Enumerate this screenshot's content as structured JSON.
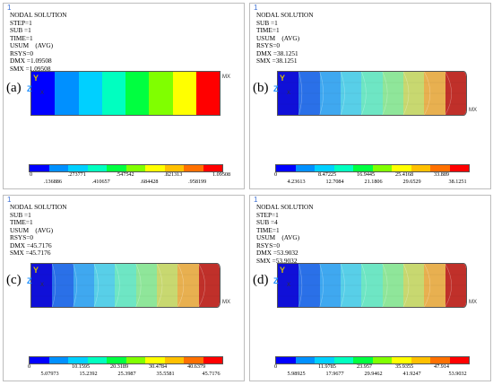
{
  "legend_colors": [
    "#0000ff",
    "#0090ff",
    "#00d0ff",
    "#00ffc0",
    "#00ff40",
    "#80ff00",
    "#ffff00",
    "#ffc000",
    "#ff7000",
    "#ff0000"
  ],
  "panels": [
    {
      "id": "a",
      "label": "(a)",
      "number": "1",
      "title": "NODAL SOLUTION",
      "lines": [
        "STEP=1",
        "SUB =1",
        "TIME=1",
        "USUM    (AVG)",
        "RSYS=0",
        "DMX =1.09508",
        "SMX =1.09508"
      ],
      "axis_y": "Y",
      "axis_z": "Z",
      "axis_x": "X",
      "mn_label": "MX",
      "model_colors": [
        "#0000ff",
        "#0090ff",
        "#00d0ff",
        "#00ffc0",
        "#00ff40",
        "#80ff00",
        "#ffff00",
        "#ff0000"
      ],
      "deformed": false,
      "ticks_top": [
        "0",
        ".273771",
        ".547542",
        ".821313",
        "1.09508"
      ],
      "ticks_bottom": [
        ".136886",
        ".410657",
        ".684428",
        ".958199"
      ]
    },
    {
      "id": "b",
      "label": "(b)",
      "number": "1",
      "title": "NODAL SOLUTION",
      "lines": [
        "SUB =1",
        "TIME=1",
        "USUM    (AVG)",
        "RSYS=0",
        "DMX =38.1251",
        "SMX =38.1251"
      ],
      "axis_y": "Y",
      "axis_z": "Z",
      "axis_x": "X",
      "mn_label": "MX",
      "model_colors": [
        "#1010d8",
        "#2a70e8",
        "#3fa8f0",
        "#58cfe8",
        "#6ee6c4",
        "#8fe69a",
        "#c8d870",
        "#e8b050",
        "#c0302a"
      ],
      "deformed": true,
      "ticks_top": [
        "0",
        "8.47225",
        "16.9445",
        "25.4168",
        "33.889"
      ],
      "ticks_bottom": [
        "4.23613",
        "12.7084",
        "21.1806",
        "29.6529",
        "38.1251"
      ]
    },
    {
      "id": "c",
      "label": "(c)",
      "number": "1",
      "title": "NODAL SOLUTION",
      "lines": [
        "SUB =1",
        "TIME=1",
        "USUM    (AVG)",
        "RSYS=0",
        "DMX =45.7176",
        "SMX =45.7176"
      ],
      "axis_y": "Y",
      "axis_z": "Z",
      "axis_x": "X",
      "mn_label": "MX",
      "model_colors": [
        "#1010d8",
        "#2a70e8",
        "#3fa8f0",
        "#58cfe8",
        "#6ee6c4",
        "#8fe69a",
        "#c8d870",
        "#e8b050",
        "#c0302a"
      ],
      "deformed": true,
      "ticks_top": [
        "0",
        "10.1595",
        "20.3189",
        "30.4784",
        "40.6379"
      ],
      "ticks_bottom": [
        "5.07973",
        "15.2392",
        "25.3987",
        "35.5581",
        "45.7176"
      ]
    },
    {
      "id": "d",
      "label": "(d)",
      "number": "1",
      "title": "NODAL SOLUTION",
      "lines": [
        "STEP=1",
        "SUB =4",
        "TIME=1",
        "USUM    (AVG)",
        "RSYS=0",
        "DMX =53.9032",
        "SMX =53.9032"
      ],
      "axis_y": "Y",
      "axis_z": "Z",
      "axis_x": "X",
      "mn_label": "MX",
      "model_colors": [
        "#1010d8",
        "#2a70e8",
        "#3fa8f0",
        "#58cfe8",
        "#6ee6c4",
        "#8fe69a",
        "#c8d870",
        "#e8b050",
        "#c0302a"
      ],
      "deformed": true,
      "ticks_top": [
        "0",
        "11.9785",
        "23.957",
        "35.9355",
        "47.914"
      ],
      "ticks_bottom": [
        "5.98925",
        "17.9677",
        "29.9462",
        "41.9247",
        "53.9032"
      ]
    }
  ]
}
